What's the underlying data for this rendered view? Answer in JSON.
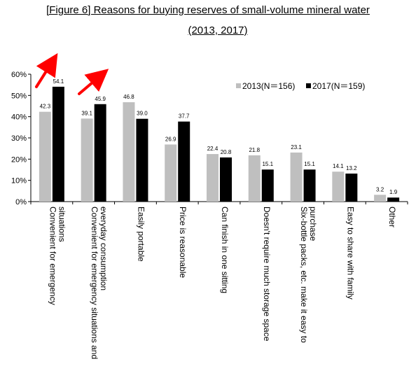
{
  "title_line1": "[Figure 6] Reasons for buying reserves of small-volume mineral water",
  "title_line2": "(2013, 2017)",
  "chart_data": {
    "type": "bar",
    "title": "[Figure 6] Reasons for buying reserves of small-volume mineral water (2013, 2017)",
    "categories": [
      [
        "Convenient for emergency",
        "situations"
      ],
      [
        "Convenient for emergency situations and",
        "everyday consumption"
      ],
      [
        "Easily portable"
      ],
      [
        "Price is reasonable"
      ],
      [
        "Can finish in one sitting"
      ],
      [
        "Doesn't require much storage space"
      ],
      [
        "Six-bottle packs, etc. make it easy to",
        "purchase"
      ],
      [
        "Easy to share with family"
      ],
      [
        "Other"
      ]
    ],
    "series": [
      {
        "name": "2013(N＝156)",
        "color": "#bfbfbf",
        "values": [
          42.3,
          39.1,
          46.8,
          26.9,
          22.4,
          21.8,
          23.1,
          14.1,
          3.2
        ],
        "labels": [
          "42.3",
          "39.1",
          "46.8",
          "26.9",
          "22.4",
          "21.8",
          "23.1",
          "14.1",
          "3.2"
        ]
      },
      {
        "name": "2017(N＝159)",
        "color": "#000000",
        "values": [
          54.1,
          45.9,
          39.0,
          37.7,
          20.8,
          15.1,
          15.1,
          13.2,
          1.9
        ],
        "labels": [
          "54.1",
          "45.9",
          "39.0",
          "37.7",
          "20.8",
          "15.1",
          "15.1",
          "13.2",
          "1.9"
        ]
      }
    ],
    "yticks": [
      "0%",
      "10%",
      "20%",
      "30%",
      "40%",
      "50%",
      "60%"
    ],
    "ylim": [
      0,
      60
    ],
    "xlabel": "",
    "ylabel": "",
    "legend_position": "top-right",
    "annotation": "red arrows over the first two categories",
    "annotation_color": "#ff0000",
    "grid": false
  }
}
